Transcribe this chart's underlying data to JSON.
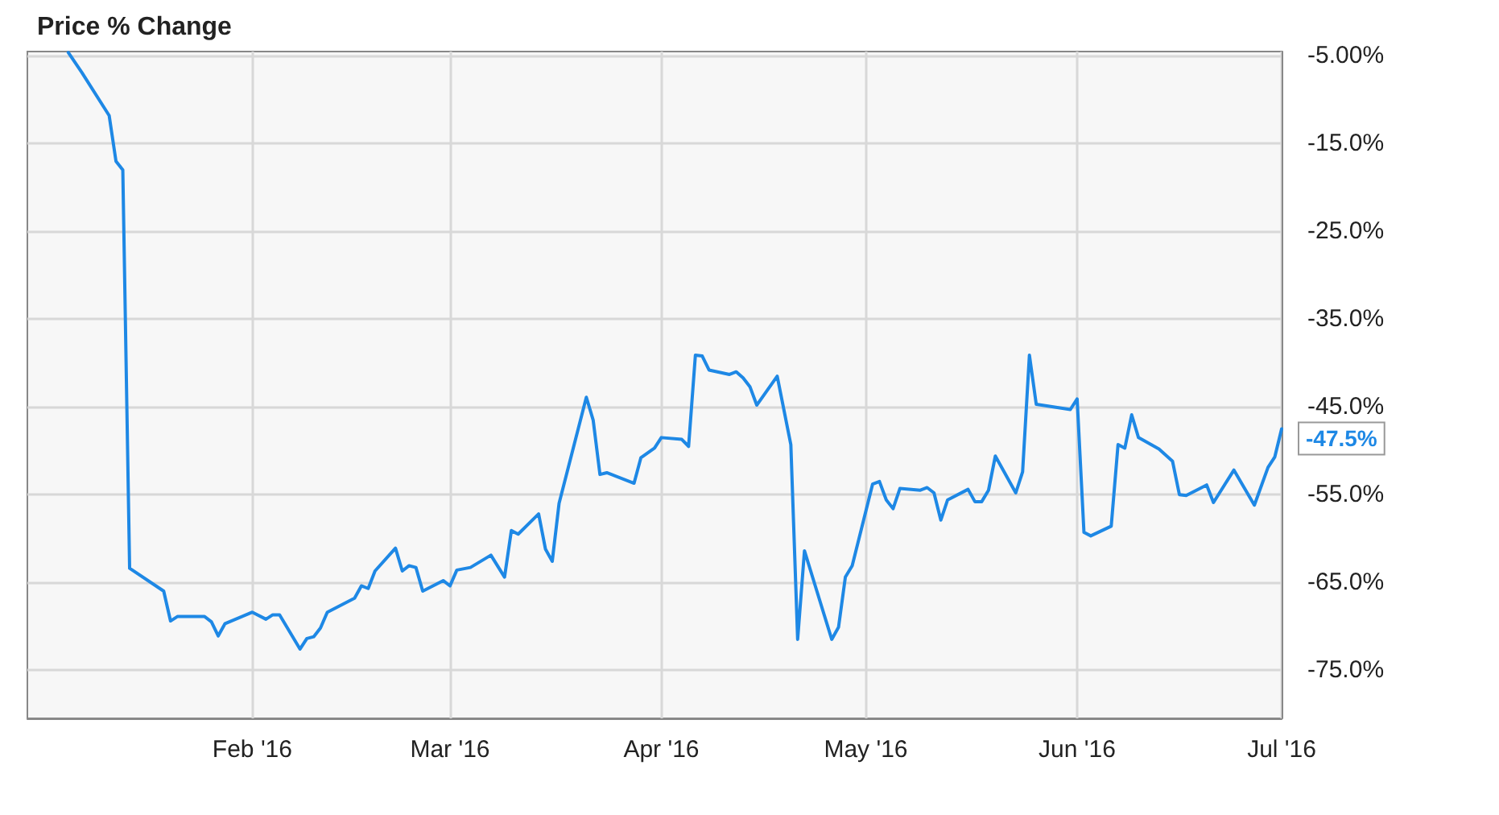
{
  "chart_data": {
    "type": "line",
    "title": "Price % Change",
    "x": [
      "2016-01-05",
      "2016-01-07",
      "2016-01-11",
      "2016-01-12",
      "2016-01-13",
      "2016-01-14",
      "2016-01-19",
      "2016-01-20",
      "2016-01-21",
      "2016-01-25",
      "2016-01-26",
      "2016-01-27",
      "2016-01-28",
      "2016-02-01",
      "2016-02-03",
      "2016-02-04",
      "2016-02-05",
      "2016-02-08",
      "2016-02-09",
      "2016-02-10",
      "2016-02-11",
      "2016-02-12",
      "2016-02-16",
      "2016-02-17",
      "2016-02-18",
      "2016-02-19",
      "2016-02-22",
      "2016-02-23",
      "2016-02-24",
      "2016-02-25",
      "2016-02-26",
      "2016-02-29",
      "2016-03-01",
      "2016-03-02",
      "2016-03-04",
      "2016-03-07",
      "2016-03-09",
      "2016-03-10",
      "2016-03-11",
      "2016-03-14",
      "2016-03-15",
      "2016-03-16",
      "2016-03-17",
      "2016-03-21",
      "2016-03-22",
      "2016-03-23",
      "2016-03-24",
      "2016-03-28",
      "2016-03-29",
      "2016-03-31",
      "2016-04-01",
      "2016-04-04",
      "2016-04-05",
      "2016-04-06",
      "2016-04-07",
      "2016-04-08",
      "2016-04-11",
      "2016-04-12",
      "2016-04-13",
      "2016-04-14",
      "2016-04-15",
      "2016-04-18",
      "2016-04-20",
      "2016-04-21",
      "2016-04-22",
      "2016-04-26",
      "2016-04-27",
      "2016-04-28",
      "2016-04-29",
      "2016-05-02",
      "2016-05-03",
      "2016-05-04",
      "2016-05-05",
      "2016-05-06",
      "2016-05-09",
      "2016-05-10",
      "2016-05-11",
      "2016-05-12",
      "2016-05-13",
      "2016-05-16",
      "2016-05-17",
      "2016-05-18",
      "2016-05-19",
      "2016-05-20",
      "2016-05-23",
      "2016-05-24",
      "2016-05-25",
      "2016-05-26",
      "2016-05-31",
      "2016-06-01",
      "2016-06-02",
      "2016-06-03",
      "2016-06-06",
      "2016-06-07",
      "2016-06-08",
      "2016-06-09",
      "2016-06-10",
      "2016-06-13",
      "2016-06-15",
      "2016-06-16",
      "2016-06-17",
      "2016-06-20",
      "2016-06-21",
      "2016-06-24",
      "2016-06-27",
      "2016-06-29",
      "2016-06-30",
      "2016-07-01"
    ],
    "values": [
      -4.6,
      -6.9,
      -11.8,
      -17.0,
      -18.0,
      -63.4,
      -66.0,
      -69.4,
      -68.9,
      -68.9,
      -69.5,
      -71.1,
      -69.7,
      -68.4,
      -69.2,
      -68.7,
      -68.7,
      -72.6,
      -71.4,
      -71.2,
      -70.2,
      -68.4,
      -66.8,
      -65.4,
      -65.7,
      -63.7,
      -61.1,
      -63.7,
      -63.1,
      -63.3,
      -66.0,
      -64.8,
      -65.4,
      -63.6,
      -63.3,
      -61.9,
      -64.4,
      -59.1,
      -59.5,
      -57.2,
      -61.2,
      -62.6,
      -56.0,
      -43.9,
      -46.5,
      -52.7,
      -52.5,
      -53.7,
      -50.8,
      -49.7,
      -48.5,
      -48.7,
      -49.5,
      -39.1,
      -39.2,
      -40.8,
      -41.3,
      -41.0,
      -41.7,
      -42.7,
      -44.8,
      -41.5,
      -49.3,
      -71.5,
      -61.4,
      -71.5,
      -70.1,
      -64.4,
      -63.1,
      -53.8,
      -53.5,
      -55.6,
      -56.6,
      -54.3,
      -54.5,
      -54.2,
      -54.8,
      -57.9,
      -55.6,
      -54.4,
      -55.8,
      -55.8,
      -54.5,
      -50.6,
      -54.8,
      -52.4,
      -39.1,
      -44.7,
      -45.3,
      -44.1,
      -59.3,
      -59.7,
      -58.6,
      -49.3,
      -49.7,
      -45.9,
      -48.5,
      -49.8,
      -51.2,
      -55.0,
      -55.1,
      -53.9,
      -55.9,
      -52.2,
      -56.2,
      -51.9,
      -50.7,
      -47.5
    ],
    "value_labels": [
      null,
      null,
      null,
      null,
      null,
      null,
      null,
      null,
      null,
      null,
      null,
      null,
      null,
      null,
      null,
      null,
      null,
      null,
      null,
      null,
      null,
      null,
      null,
      null,
      null,
      null,
      null,
      null,
      null,
      null,
      null,
      null,
      null,
      null,
      null,
      null,
      null,
      null,
      null,
      null,
      null,
      null,
      null,
      null,
      null,
      null,
      null,
      null,
      null,
      null,
      null,
      null,
      null,
      null,
      null,
      null,
      null,
      null,
      null,
      null,
      null,
      null,
      null,
      null,
      null,
      null,
      null,
      null,
      null,
      null,
      null,
      null,
      null,
      null,
      null,
      null,
      null,
      null,
      null,
      null,
      null,
      null,
      null,
      null,
      null,
      null,
      null,
      null,
      null,
      null,
      null,
      null,
      null,
      null,
      null,
      null,
      null,
      null,
      null,
      null,
      null,
      null,
      null,
      null,
      null,
      null,
      null,
      "-47.5%"
    ],
    "color": "#1e88e5",
    "xlim": [
      "2015-12-30",
      "2016-07-01"
    ],
    "xticks": [
      {
        "value": "2016-02-01",
        "label": "Feb '16"
      },
      {
        "value": "2016-03-01",
        "label": "Mar '16"
      },
      {
        "value": "2016-04-01",
        "label": "Apr '16"
      },
      {
        "value": "2016-05-01",
        "label": "May '16"
      },
      {
        "value": "2016-06-01",
        "label": "Jun '16"
      },
      {
        "value": "2016-07-01",
        "label": "Jul '16"
      }
    ],
    "ylim": [
      -80.5,
      -4.5
    ],
    "yticks": [
      {
        "value": -5,
        "label": "-5.00%"
      },
      {
        "value": -15,
        "label": "-15.0%"
      },
      {
        "value": -25,
        "label": "-25.0%"
      },
      {
        "value": -35,
        "label": "-35.0%"
      },
      {
        "value": -45,
        "label": "-45.0%"
      },
      {
        "value": -55,
        "label": "-55.0%"
      },
      {
        "value": -65,
        "label": "-65.0%"
      },
      {
        "value": -75,
        "label": "-75.0%"
      }
    ],
    "grid": true,
    "marker": "none",
    "line_style": "solid"
  }
}
